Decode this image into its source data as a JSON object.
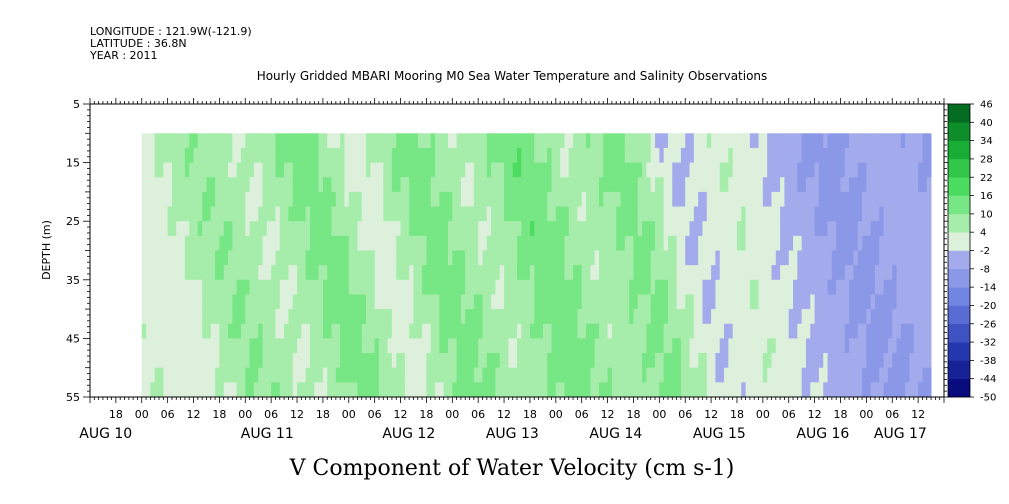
{
  "header": {
    "longitude": "LONGITUDE : 121.9W(-121.9)",
    "latitude": "LATITUDE : 36.8N",
    "year": "YEAR : 2011"
  },
  "chart_data": {
    "type": "heatmap",
    "title": "Hourly Gridded MBARI Mooring M0 Sea Water Temperature and Salinity Observations",
    "variable_label": "V Component of Water Velocity (cm s-1)",
    "ylabel": "DEPTH (m)",
    "y_ticks": [
      "5",
      "15",
      "25",
      "35",
      "45",
      "55"
    ],
    "ylim": [
      5,
      55
    ],
    "y_inverted": true,
    "data_depth_range": [
      10,
      55
    ],
    "x_range": [
      "2011-08-09T12:00",
      "2011-08-17T18:00"
    ],
    "data_time_range": [
      "2011-08-10T00:00",
      "2011-08-17T15:00"
    ],
    "x_hour_ticks": [
      "18",
      "00",
      "06",
      "12",
      "18",
      "00",
      "06",
      "12",
      "18",
      "00",
      "06",
      "12",
      "18",
      "00",
      "06",
      "12",
      "18",
      "00",
      "06",
      "12",
      "18",
      "00",
      "06",
      "12",
      "18",
      "00",
      "06",
      "12",
      "18",
      "00",
      "06",
      "12"
    ],
    "x_day_labels": [
      "AUG 10",
      "AUG 11",
      "AUG 12",
      "AUG 13",
      "AUG 14",
      "AUG 15",
      "AUG 16",
      "AUG 17"
    ],
    "colorbar": {
      "levels": [
        -50,
        -44,
        -38,
        -32,
        -26,
        -20,
        -14,
        -8,
        -2,
        4,
        10,
        16,
        22,
        28,
        34,
        40,
        46
      ],
      "labels": [
        "46",
        "40",
        "34",
        "28",
        "22",
        "16",
        "10",
        "4",
        "-2",
        "-8",
        "-14",
        "-20",
        "-26",
        "-32",
        "-38",
        "-44",
        "-50"
      ],
      "low_color": "#000070",
      "mid_color": "#dcf0dc",
      "high_color": "#005c1c"
    },
    "approx_v_by_time": {
      "times": [
        "2011-08-10T00:00",
        "2011-08-10T12:00",
        "2011-08-11T00:00",
        "2011-08-11T12:00",
        "2011-08-12T00:00",
        "2011-08-12T12:00",
        "2011-08-13T00:00",
        "2011-08-13T12:00",
        "2011-08-14T00:00",
        "2011-08-14T12:00",
        "2011-08-15T00:00",
        "2011-08-15T12:00",
        "2011-08-16T00:00",
        "2011-08-16T12:00",
        "2011-08-17T00:00",
        "2011-08-17T12:00"
      ],
      "values": [
        2,
        9,
        5,
        12,
        2,
        12,
        5,
        14,
        5,
        14,
        -4,
        5,
        -5,
        -9,
        -6,
        -7
      ]
    }
  }
}
